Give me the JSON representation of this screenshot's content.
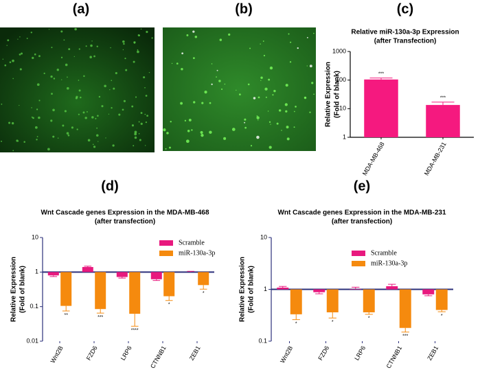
{
  "figure": {
    "panel_labels": [
      "(a)",
      "(b)",
      "(c)",
      "(d)",
      "(e)"
    ]
  },
  "chart_data": [
    {
      "type": "bar",
      "title": "Relative miR-130a-3p Expression",
      "subtitle": "(after Transfection)",
      "ylabel": [
        "Relative  Expression",
        "(Fold of blank)"
      ],
      "categories": [
        "MDA-MB-468",
        "MDA-MB-231"
      ],
      "series": [
        {
          "color": "#f5197f",
          "values": [
            105,
            13.5
          ],
          "errors": [
            13,
            3.5
          ],
          "annotations": [
            "***",
            "***"
          ]
        }
      ],
      "log_scale": true,
      "ylim": [
        1,
        1000
      ],
      "yticks": [
        1,
        10,
        100,
        1000
      ],
      "baseline": 1,
      "baseline_line": false,
      "axis_color": "#000000"
    },
    {
      "type": "bar",
      "title": "Wnt Cascade genes Expression in the MDA-MB-468",
      "subtitle": "(after transfection)",
      "ylabel": [
        "Relative  Expression",
        "(Fold of blank)"
      ],
      "categories": [
        "Wnt2B",
        "FZD6",
        "LRP6",
        "CTNNB1",
        "ZEB1"
      ],
      "series": [
        {
          "name": "Scramble",
          "color": "#e8197e",
          "values": [
            0.8,
            1.4,
            0.72,
            0.62,
            1.0
          ],
          "errors": [
            0.06,
            0.08,
            0.05,
            0.05,
            0.05
          ]
        },
        {
          "name": "miR-130a-3p",
          "color": "#f58a0e",
          "values": [
            0.105,
            0.085,
            0.062,
            0.2,
            0.42
          ],
          "errors": [
            0.03,
            0.02,
            0.035,
            0.05,
            0.1
          ],
          "annotations": [
            "**",
            "***",
            "****",
            "*",
            "*"
          ]
        }
      ],
      "log_scale": true,
      "ylim": [
        0.01,
        10
      ],
      "yticks": [
        0.01,
        0.1,
        1,
        10
      ],
      "baseline": 1,
      "baseline_line": true,
      "axis_color": "#2b2f7a",
      "legend": "upper right"
    },
    {
      "type": "bar",
      "title": "Wnt Cascade genes Expression in the MDA-MB-231",
      "subtitle": "(after transfection)",
      "ylabel": [
        "Relative  Expression",
        "(Fold of blank)"
      ],
      "categories": [
        "Wnt2B",
        "FZD6",
        "LRP6",
        "CTNNB1",
        "ZEB1"
      ],
      "series": [
        {
          "name": "Scramble",
          "color": "#e8197e",
          "values": [
            1.08,
            0.88,
            1.02,
            1.15,
            0.8
          ],
          "errors": [
            0.06,
            0.06,
            0.08,
            0.1,
            0.05
          ]
        },
        {
          "name": "miR-130a-3p",
          "color": "#f58a0e",
          "values": [
            0.33,
            0.36,
            0.36,
            0.18,
            0.4
          ],
          "errors": [
            0.07,
            0.08,
            0.03,
            0.03,
            0.03
          ],
          "annotations": [
            "*",
            "*",
            "*",
            "***",
            "*"
          ]
        }
      ],
      "log_scale": true,
      "ylim": [
        0.1,
        10
      ],
      "yticks": [
        0.1,
        1,
        10
      ],
      "baseline": 1,
      "baseline_line": true,
      "axis_color": "#2b2f7a",
      "legend": "upper right"
    }
  ]
}
